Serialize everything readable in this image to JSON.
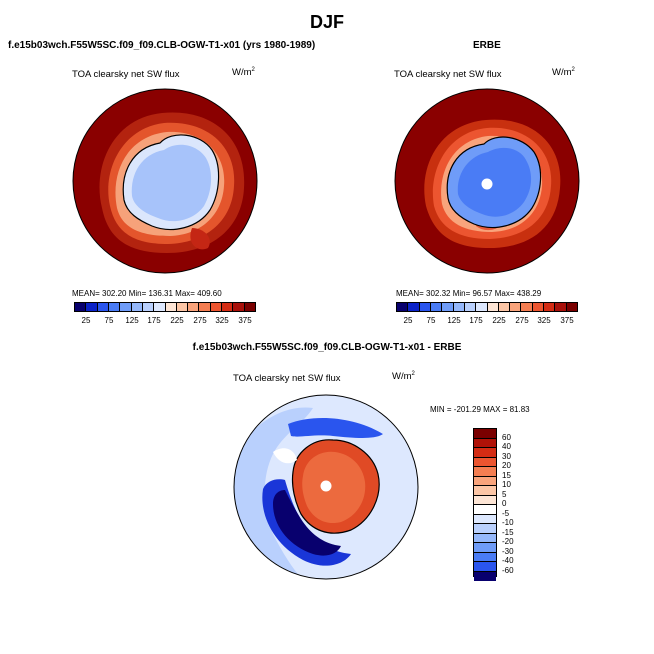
{
  "title": "DJF",
  "left_panel": {
    "case_title": "f.e15b03wch.F55W5SC.f09_f09.CLB-OGW-T1-x01 (yrs 1980-1989)",
    "label": "TOA clearsky net SW flux",
    "units": "W/m",
    "units_exp": "2",
    "stats": "MEAN= 302.20   Min= 136.31   Max= 409.60",
    "colorbar_ticks": [
      "25",
      "75",
      "125",
      "175",
      "225",
      "275",
      "325",
      "375"
    ]
  },
  "right_panel": {
    "case_title": "ERBE",
    "label": "TOA clearsky net SW flux",
    "units": "W/m",
    "units_exp": "2",
    "stats": "MEAN= 302.32   Min= 96.57   Max= 438.29",
    "colorbar_ticks": [
      "25",
      "75",
      "125",
      "175",
      "225",
      "275",
      "325",
      "375"
    ]
  },
  "diff_panel": {
    "case_title": "f.e15b03wch.F55W5SC.f09_f09.CLB-OGW-T1-x01 - ERBE",
    "label": "TOA clearsky net SW flux",
    "units": "W/m",
    "units_exp": "2",
    "stats": "MIN = -201.29 MAX = 81.83",
    "colorbar_ticks": [
      "60",
      "40",
      "30",
      "20",
      "15",
      "10",
      "5",
      "0",
      "-5",
      "-10",
      "-15",
      "-20",
      "-30",
      "-40",
      "-60"
    ]
  },
  "colors": {
    "abs_scale": [
      "#08006e",
      "#0b22c8",
      "#2a55ee",
      "#4a7cf5",
      "#6f9cf8",
      "#95b8fb",
      "#b9d0fd",
      "#dde8fe",
      "#fde5d5",
      "#fcc6a6",
      "#f9a47c",
      "#f47e52",
      "#ec5530",
      "#d42c14",
      "#a8100a",
      "#7a0000"
    ],
    "diff_scale": [
      "#7a0000",
      "#b01208",
      "#d42c14",
      "#ec5530",
      "#f47e52",
      "#f9a47c",
      "#fcc6a6",
      "#fde5d5",
      "#ffffff",
      "#dde8fe",
      "#b9d0fd",
      "#95b8fb",
      "#6f9cf8",
      "#4a7cf5",
      "#2a55ee",
      "#0b22c8",
      "#08006e"
    ]
  }
}
